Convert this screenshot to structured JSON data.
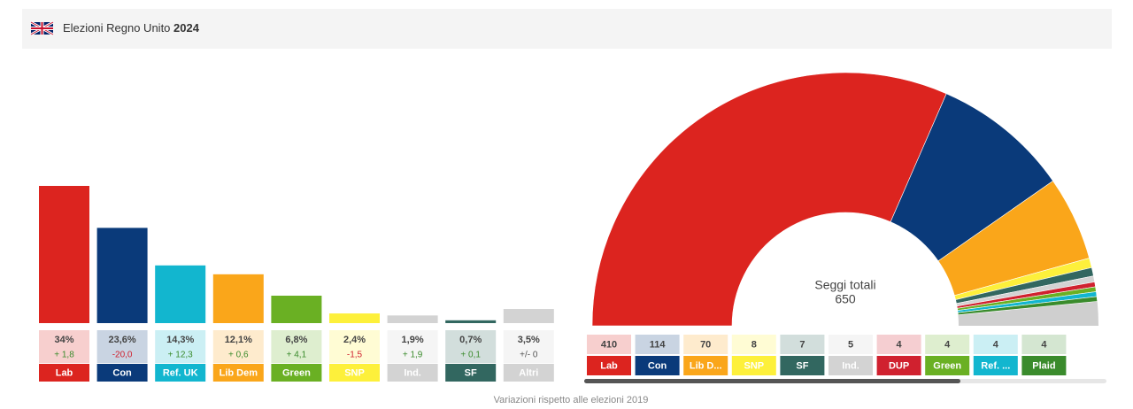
{
  "header": {
    "title": "Elezioni Regno Unito",
    "year": "2024"
  },
  "footer": "Variazioni rispetto alle elezioni 2019",
  "chart_data": [
    {
      "type": "bar",
      "categories": [
        "Lab",
        "Con",
        "Ref. UK",
        "Lib Dem",
        "Green",
        "SNP",
        "Ind.",
        "SF",
        "Altri"
      ],
      "values": [
        34,
        23.6,
        14.3,
        12.1,
        6.8,
        2.4,
        1.9,
        0.7,
        3.5
      ],
      "value_labels": [
        "34%",
        "23,6%",
        "14,3%",
        "12,1%",
        "6,8%",
        "2,4%",
        "1,9%",
        "0,7%",
        "3,5%"
      ],
      "changes": [
        1.8,
        -20.0,
        12.3,
        0.6,
        4.1,
        -1.5,
        1.9,
        0.1,
        0
      ],
      "change_labels": [
        "+ 1,8",
        "-20,0",
        "+ 12,3",
        "+ 0,6",
        "+ 4,1",
        "-1,5",
        "+ 1,9",
        "+ 0,1",
        "+/- 0"
      ],
      "colors": [
        "#dc241f",
        "#0a3a7a",
        "#12b6cf",
        "#faa61a",
        "#6ab023",
        "#fdf03b",
        "#d3d3d3",
        "#326760",
        "#d3d3d3"
      ]
    },
    {
      "type": "semicircle",
      "center_label": "Seggi totali",
      "total": 650,
      "categories": [
        "Lab",
        "Con",
        "Lib D...",
        "SNP",
        "SF",
        "Ind.",
        "DUP",
        "Green",
        "Ref. ...",
        "Plaid"
      ],
      "values": [
        410,
        114,
        70,
        8,
        7,
        5,
        4,
        4,
        4,
        4
      ],
      "colors": [
        "#dc241f",
        "#0a3a7a",
        "#faa61a",
        "#fdf03b",
        "#326760",
        "#d3d3d3",
        "#d0212f",
        "#6ab023",
        "#12b6cf",
        "#3a8b2c"
      ]
    }
  ]
}
